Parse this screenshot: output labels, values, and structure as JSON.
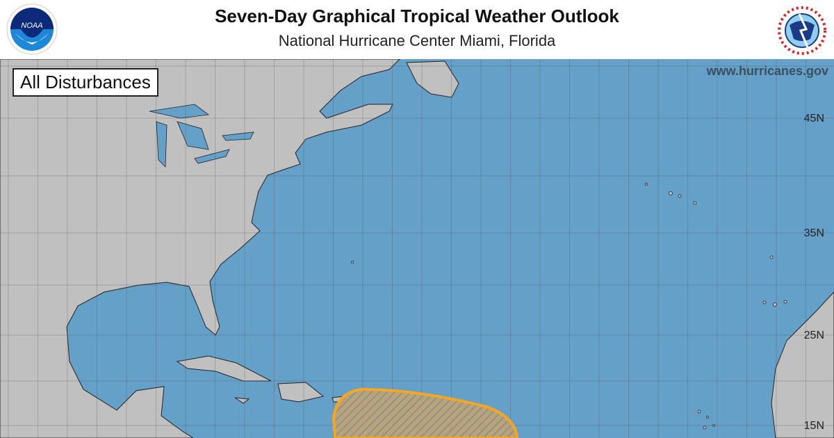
{
  "header": {
    "title": "Seven-Day Graphical Tropical Weather Outlook",
    "subtitle": "National Hurricane Center  Miami, Florida",
    "left_logo": "NOAA",
    "right_logo": "NATIONAL WEATHER SERVICE"
  },
  "map": {
    "view_label": "All Disturbances",
    "website": "www.hurricanes.gov",
    "latitude_labels": [
      "45N",
      "35N",
      "25N",
      "15N"
    ],
    "colors": {
      "ocean": "#64a0c8",
      "land": "#c0c0c0",
      "outlook_area": "#f5a623"
    },
    "outlook_areas": [
      {
        "region": "Lesser Antilles / Central Tropical Atlantic",
        "style": "orange-hatched"
      }
    ]
  }
}
